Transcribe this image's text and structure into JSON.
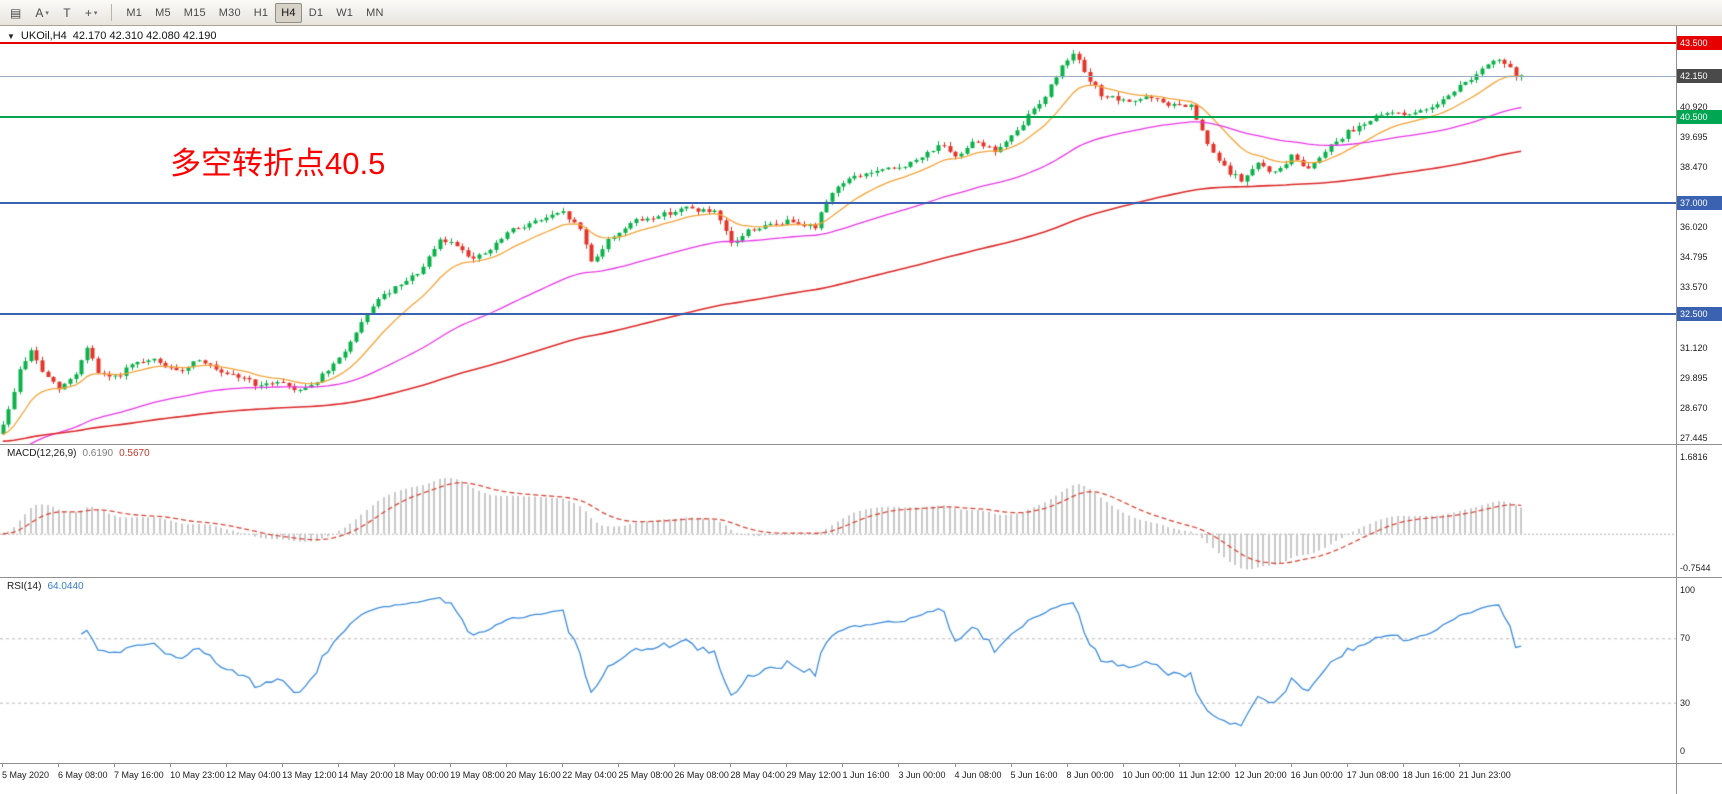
{
  "toolbar": {
    "icons": [
      {
        "name": "chart-window-icon",
        "glyph": "▤"
      },
      {
        "name": "text-annotation-icon",
        "glyph": "A",
        "caret": true
      },
      {
        "name": "text-label-icon",
        "glyph": "T"
      },
      {
        "name": "line-tools-icon",
        "glyph": "+",
        "caret": true
      }
    ],
    "timeframes": [
      "M1",
      "M5",
      "M15",
      "M30",
      "H1",
      "H4",
      "D1",
      "W1",
      "MN"
    ],
    "active_timeframe": "H4"
  },
  "chart": {
    "menu_caret": "▼",
    "title": "UKOil,H4",
    "ohlc": "42.170 42.310 42.080 42.190",
    "annotation": "多空转折点40.5"
  },
  "chart_data": {
    "type": "candlestick",
    "symbol": "UKOil",
    "timeframe": "H4",
    "ohlc_display": {
      "open": "42.170",
      "high": "42.310",
      "low": "42.080",
      "close": "42.190"
    },
    "y_range": [
      27.2,
      44.2
    ],
    "y_ticks": [
      40.92,
      39.695,
      38.47,
      36.02,
      34.795,
      33.57,
      31.12,
      29.895,
      28.67,
      27.445
    ],
    "levels": [
      {
        "value": 43.5,
        "label": "43.500",
        "color": "#e60000",
        "badge": "#e60000",
        "width": 2
      },
      {
        "value": 42.15,
        "label": "42.150",
        "color": "#9aafc4",
        "badge": "#4a4a4a",
        "width": 1
      },
      {
        "value": 40.5,
        "label": "40.500",
        "color": "#00a651",
        "badge": "#00a651",
        "width": 2
      },
      {
        "value": 37.0,
        "label": "37.000",
        "color": "#3a62b0",
        "badge": "#3a62b0",
        "width": 2
      },
      {
        "value": 32.5,
        "label": "32.500",
        "color": "#3a62b0",
        "badge": "#3a62b0",
        "width": 2
      }
    ],
    "candles": {
      "count": 272,
      "last_close": 42.19,
      "up_color": "#0cb14b",
      "down_color": "#e3352a",
      "anchors": [
        [
          0,
          27.6
        ],
        [
          2,
          28.6
        ],
        [
          4,
          30.3
        ],
        [
          6,
          31.0
        ],
        [
          8,
          30.1
        ],
        [
          11,
          29.4
        ],
        [
          14,
          30.1
        ],
        [
          16,
          31.2
        ],
        [
          18,
          30.0
        ],
        [
          21,
          29.9
        ],
        [
          24,
          30.4
        ],
        [
          28,
          30.6
        ],
        [
          32,
          30.1
        ],
        [
          36,
          30.7
        ],
        [
          40,
          30.0
        ],
        [
          44,
          29.9
        ],
        [
          47,
          29.5
        ],
        [
          50,
          29.8
        ],
        [
          53,
          29.4
        ],
        [
          56,
          29.6
        ],
        [
          60,
          30.4
        ],
        [
          64,
          31.7
        ],
        [
          67,
          32.9
        ],
        [
          70,
          33.4
        ],
        [
          73,
          33.8
        ],
        [
          76,
          34.4
        ],
        [
          79,
          35.5
        ],
        [
          82,
          35.3
        ],
        [
          85,
          34.7
        ],
        [
          88,
          35.1
        ],
        [
          91,
          35.8
        ],
        [
          94,
          36.1
        ],
        [
          98,
          36.4
        ],
        [
          101,
          36.6
        ],
        [
          104,
          35.9
        ],
        [
          106,
          34.6
        ],
        [
          109,
          35.5
        ],
        [
          113,
          36.2
        ],
        [
          118,
          36.5
        ],
        [
          123,
          36.8
        ],
        [
          128,
          36.6
        ],
        [
          131,
          35.3
        ],
        [
          134,
          35.9
        ],
        [
          138,
          36.1
        ],
        [
          142,
          36.3
        ],
        [
          146,
          36.0
        ],
        [
          148,
          37.2
        ],
        [
          151,
          37.9
        ],
        [
          155,
          38.2
        ],
        [
          160,
          38.4
        ],
        [
          164,
          38.7
        ],
        [
          168,
          39.4
        ],
        [
          171,
          38.8
        ],
        [
          174,
          39.6
        ],
        [
          178,
          39.1
        ],
        [
          182,
          39.9
        ],
        [
          184,
          40.6
        ],
        [
          187,
          41.4
        ],
        [
          190,
          42.6
        ],
        [
          192,
          43.2
        ],
        [
          194,
          42.2
        ],
        [
          197,
          41.4
        ],
        [
          201,
          41.1
        ],
        [
          205,
          41.3
        ],
        [
          209,
          41.0
        ],
        [
          213,
          40.9
        ],
        [
          216,
          39.3
        ],
        [
          219,
          38.4
        ],
        [
          222,
          37.9
        ],
        [
          225,
          38.6
        ],
        [
          228,
          38.2
        ],
        [
          231,
          38.9
        ],
        [
          234,
          38.4
        ],
        [
          237,
          39.2
        ],
        [
          241,
          39.9
        ],
        [
          245,
          40.4
        ],
        [
          249,
          40.7
        ],
        [
          253,
          40.6
        ],
        [
          257,
          41.1
        ],
        [
          260,
          41.6
        ],
        [
          263,
          42.1
        ],
        [
          266,
          42.6
        ],
        [
          268,
          42.85
        ],
        [
          271,
          42.19
        ]
      ]
    },
    "moving_averages": [
      {
        "name": "ma-fast",
        "color": "#f5a43a",
        "period": 13,
        "seed": 27.5,
        "width": 1.3
      },
      {
        "name": "ma-mid",
        "color": "#e838e8",
        "period": 55,
        "seed": 26.6,
        "width": 1.3
      },
      {
        "name": "ma-slow",
        "color": "#dd2a2a",
        "period": 150,
        "seed": 27.3,
        "width": 1.6
      }
    ],
    "macd": {
      "label": "MACD(12,26,9)",
      "value_main": "0.6190",
      "value_signal": "0.5670",
      "fast": 12,
      "slow": 26,
      "signal": 9,
      "range": [
        -0.95,
        1.95
      ],
      "ticks": [
        1.6816,
        -0.7544
      ],
      "hist_color": "#c9c9c9",
      "signal_color": "#d94a3a"
    },
    "rsi": {
      "label": "RSI(14)",
      "value": "64.0440",
      "period": 14,
      "ticks": [
        100,
        70,
        30,
        0
      ],
      "levels": [
        70,
        30
      ],
      "color": "#3f8ddd"
    },
    "x_label_every": 10,
    "x_labels": [
      "5 May 2020",
      "6 May 08:00",
      "7 May 16:00",
      "10 May 23:00",
      "12 May 04:00",
      "13 May 12:00",
      "14 May 20:00",
      "18 May 00:00",
      "19 May 08:00",
      "20 May 16:00",
      "22 May 04:00",
      "25 May 08:00",
      "26 May 08:00",
      "28 May 04:00",
      "29 May 12:00",
      "1 Jun 16:00",
      "3 Jun 00:00",
      "4 Jun 08:00",
      "5 Jun 16:00",
      "8 Jun 00:00",
      "10 Jun 00:00",
      "11 Jun 12:00",
      "12 Jun 20:00",
      "16 Jun 00:00",
      "17 Jun 08:00",
      "18 Jun 16:00",
      "21 Jun 23:00"
    ]
  }
}
